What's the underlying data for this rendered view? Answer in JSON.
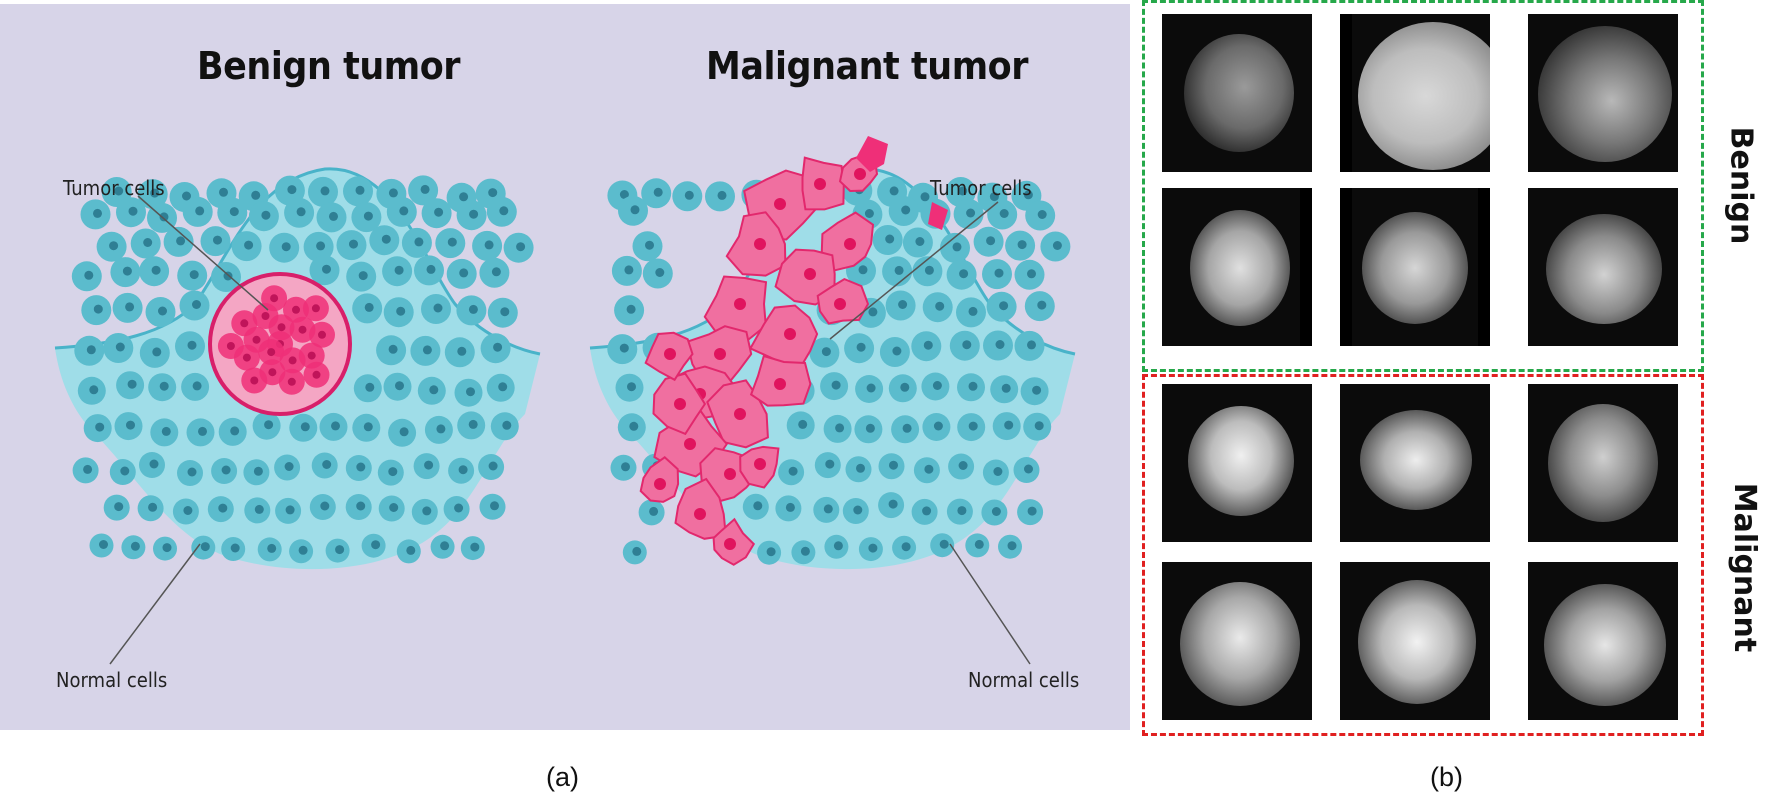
{
  "panel_a": {
    "benign_heading": "Benign tumor",
    "malignant_heading": "Malignant tumor",
    "benign_tumor_label": "Tumor cells",
    "benign_normal_label": "Normal cells",
    "malignant_tumor_label": "Tumor cells",
    "malignant_normal_label": "Normal cells",
    "caption": "(a)",
    "colors": {
      "background": "#d7d4e8",
      "tissue": "#9fdde8",
      "cell": "#5bbccd",
      "nucleus": "#2f7f94",
      "tumor": "#ef2f78"
    }
  },
  "panel_b": {
    "benign_label": "Benign",
    "malignant_label": "Malignant",
    "caption": "(b)",
    "colors": {
      "benign_border": "#26a84a",
      "malignant_border": "#e02020"
    }
  }
}
